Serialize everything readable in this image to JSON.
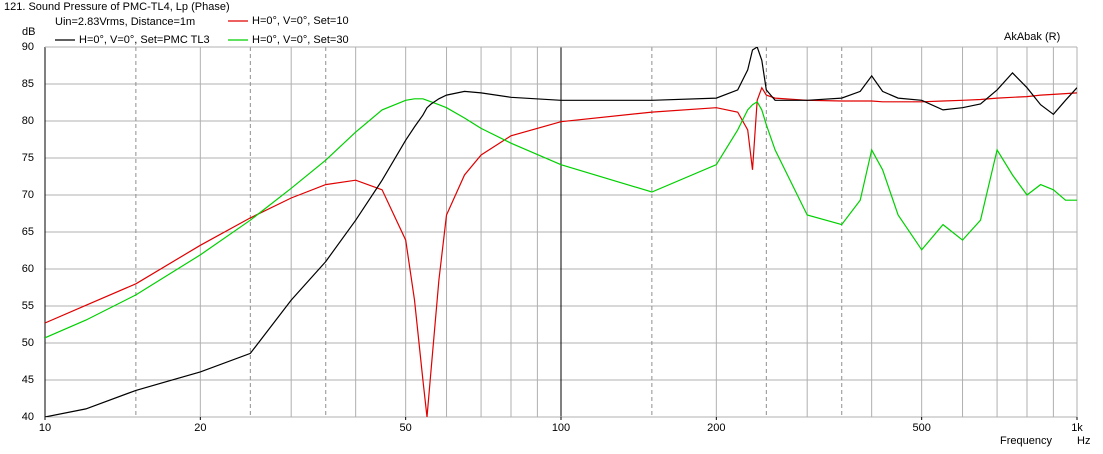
{
  "chart_data": {
    "type": "line",
    "title": "121. Sound Pressure of PMC-TL4, Lp (Phase)",
    "subtitle": "Uin=2.83Vrms, Distance=1m",
    "watermark": "AkAbak (R)",
    "y_label": "dB",
    "x_label": "Frequency",
    "x_unit": "Hz",
    "log_x": true,
    "grid": true,
    "x": [
      10,
      12,
      15,
      20,
      25,
      30,
      35,
      40,
      45,
      50,
      52,
      54,
      55,
      56,
      58,
      60,
      65,
      70,
      80,
      100,
      150,
      200,
      220,
      230,
      235,
      240,
      245,
      250,
      260,
      300,
      350,
      380,
      400,
      420,
      450,
      500,
      550,
      600,
      650,
      700,
      750,
      800,
      850,
      900,
      950,
      1000
    ],
    "series": [
      {
        "name": "H=0°, V=0°, Set=PMC TL3",
        "color": "#000000",
        "values": [
          40,
          41.1,
          43.6,
          46.1,
          48.6,
          55.8,
          61,
          66.6,
          72,
          77.4,
          79.2,
          80.8,
          81.8,
          82.3,
          83,
          83.5,
          84,
          83.8,
          83.2,
          82.8,
          82.8,
          83.1,
          84.2,
          86.9,
          89.6,
          90,
          88.2,
          84.2,
          82.8,
          82.8,
          83.1,
          84,
          86.1,
          84,
          83.1,
          82.8,
          81.5,
          81.8,
          82.3,
          84.2,
          86.5,
          84.5,
          82.2,
          80.9,
          82.8,
          84.5
        ]
      },
      {
        "name": "H=0°, V=0°, Set=10",
        "color": "#e00000",
        "values": [
          52.7,
          55.1,
          58,
          63.2,
          66.9,
          69.6,
          71.4,
          72,
          70.7,
          63.9,
          55.8,
          45,
          40,
          46.4,
          58.5,
          67.3,
          72.7,
          75.4,
          78,
          79.9,
          81.2,
          81.8,
          81.2,
          78.8,
          73.4,
          82.8,
          84.5,
          83.5,
          83.1,
          82.8,
          82.7,
          82.7,
          82.7,
          82.6,
          82.6,
          82.6,
          82.7,
          82.8,
          82.9,
          83.1,
          83.2,
          83.3,
          83.5,
          83.6,
          83.7,
          83.8
        ]
      },
      {
        "name": "H=0°, V=0°, Set=30",
        "color": "#00d000",
        "values": [
          50.7,
          53.1,
          56.5,
          61.9,
          66.6,
          70.9,
          74.7,
          78.5,
          81.5,
          82.8,
          83,
          83,
          82.8,
          82.6,
          82.2,
          81.8,
          80.4,
          79,
          77,
          74.1,
          70.4,
          74.1,
          78.8,
          81.5,
          82.2,
          82.6,
          81.5,
          79.5,
          76.1,
          67.3,
          66,
          69.3,
          76.1,
          73.4,
          67.3,
          62.6,
          66,
          63.9,
          66.6,
          76.1,
          72.7,
          70,
          71.4,
          70.7,
          69.3,
          69.3
        ]
      }
    ],
    "xlim": [
      10,
      1000
    ],
    "xticks": [
      10,
      20,
      50,
      100,
      200,
      500,
      {
        "value": 1000,
        "label": "1k"
      }
    ],
    "xgrid": [
      20,
      30,
      40,
      50,
      60,
      70,
      80,
      90,
      200,
      300,
      400,
      500,
      600,
      700,
      800,
      900
    ],
    "xgrid_dashed": [
      15,
      25,
      35,
      150,
      250,
      350
    ],
    "xgrid_major": [
      100
    ],
    "ylim": [
      40,
      90
    ],
    "yticks": [
      40,
      45,
      50,
      55,
      60,
      65,
      70,
      75,
      80,
      85,
      90
    ]
  }
}
